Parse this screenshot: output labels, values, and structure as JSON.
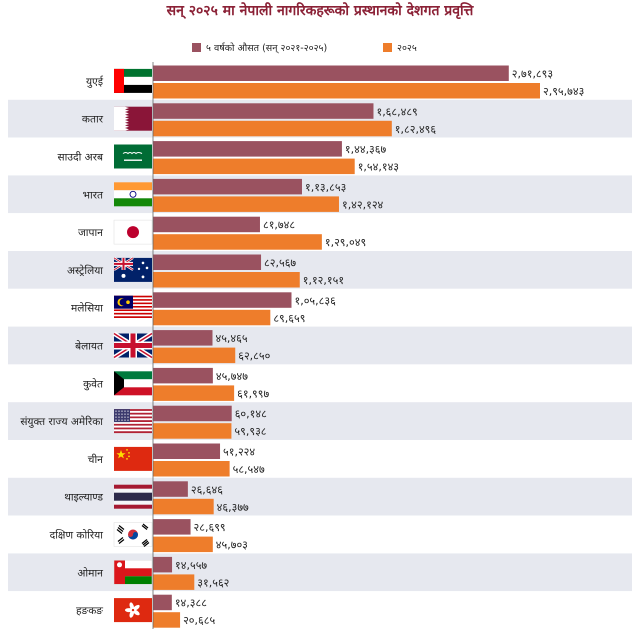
{
  "chart_data": {
    "type": "bar",
    "title": "सन् २०२५ मा नेपाली नागरिकहरूको प्रस्थानको देशगत प्रवृत्ति",
    "legend_position": "top",
    "categories": [
      "युएई",
      "कतार",
      "साउदी अरब",
      "भारत",
      "जापान",
      "अस्ट्रेलिया",
      "मलेसिया",
      "बेलायत",
      "कुवेत",
      "संयुक्त राज्य अमेरिका",
      "चीन",
      "थाइल्याण्ड",
      "दक्षिण कोरिया",
      "ओमान",
      "हङकङ"
    ],
    "series": [
      {
        "name": "५ वर्षको औसत (सन् २०२१-२०२५)",
        "color": "#9a5260",
        "values": [
          271893,
          168489,
          144367,
          113853,
          81748,
          82567,
          105836,
          45465,
          45747,
          60148,
          51224,
          26646,
          28699,
          14557,
          14388
        ],
        "labels": [
          "२,७१,८९३",
          "१,६८,४८९",
          "१,४४,३६७",
          "१,१३,८५३",
          "८१,७४८",
          "८२,५६७",
          "१,०५,८३६",
          "४५,४६५",
          "४५,७४७",
          "६०,१४८",
          "५१,२२४",
          "२६,६४६",
          "२८,६९९",
          "१४,५५७",
          "१४,३८८"
        ]
      },
      {
        "name": "२०२५",
        "color": "#ee7d2b",
        "values": [
          295743,
          182496,
          154143,
          142124,
          129049,
          112151,
          89659,
          62850,
          61997,
          59938,
          58547,
          46377,
          45703,
          31562,
          20685
        ],
        "labels": [
          "२,९५,७४३",
          "१,८२,४९६",
          "१,५४,१४३",
          "१,४२,१२४",
          "१,२९,०४९",
          "१,१२,१५१",
          "८९,६५९",
          "६२,८५०",
          "६१,९९७",
          "५९,९३८",
          "५८,५४७",
          "४६,३७७",
          "४५,७०३",
          "३१,५६२",
          "२०,६८५"
        ]
      }
    ],
    "flags": [
      "uae-flag",
      "qatar-flag",
      "saudi-arabia-flag",
      "india-flag",
      "japan-flag",
      "australia-flag",
      "malaysia-flag",
      "uk-flag",
      "kuwait-flag",
      "usa-flag",
      "china-flag",
      "thailand-flag",
      "south-korea-flag",
      "oman-flag",
      "hong-kong-flag"
    ],
    "colors": {
      "title": "#8b2136",
      "row_shade": "#e6e8ef",
      "row_plain": "#ffffff"
    }
  }
}
